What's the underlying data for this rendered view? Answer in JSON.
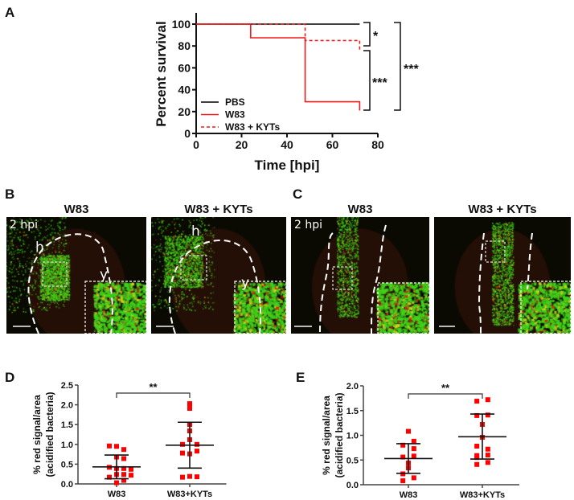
{
  "panel_letters": [
    "A",
    "B",
    "C",
    "D",
    "E"
  ],
  "micrographs": {
    "B": {
      "titles": [
        "W83",
        "W83 + KYTs"
      ],
      "time_label": "2 hpi",
      "region_labels": [
        "h",
        "y"
      ]
    },
    "C": {
      "titles": [
        "W83",
        "W83 + KYTs"
      ],
      "time_label": "2 hpi"
    }
  },
  "colors": {
    "pbs": "#000000",
    "w83": "#ee1c1c",
    "kyts": "#ee1c1c",
    "points": "#ff0000",
    "green": "#3fd21a"
  },
  "chart_data": [
    {
      "id": "A",
      "type": "line",
      "title": "",
      "xlabel": "Time [hpi]",
      "ylabel": "Percent survival",
      "xlim": [
        0,
        80
      ],
      "ylim": [
        0,
        100
      ],
      "xticks": [
        "0",
        "20",
        "40",
        "60",
        "80"
      ],
      "yticks": [
        "0",
        "20",
        "40",
        "60",
        "80",
        "100"
      ],
      "legend_position": "bottom-left",
      "series": [
        {
          "name": "PBS",
          "style": "solid",
          "step": [
            [
              0,
              100
            ],
            [
              72,
              100
            ]
          ]
        },
        {
          "name": "W83",
          "style": "solid",
          "step": [
            [
              0,
              100
            ],
            [
              24,
              87.5
            ],
            [
              48,
              29
            ],
            [
              72,
              21
            ]
          ]
        },
        {
          "name": "W83 + KYTs",
          "style": "dashed",
          "step": [
            [
              0,
              100
            ],
            [
              48,
              85
            ],
            [
              72,
              75
            ]
          ]
        }
      ],
      "annotations": [
        {
          "between": [
            "PBS",
            "W83 + KYTs"
          ],
          "label": "*"
        },
        {
          "between": [
            "W83 + KYTs",
            "W83"
          ],
          "label": "***"
        },
        {
          "between": [
            "PBS",
            "W83"
          ],
          "label": "***"
        }
      ]
    },
    {
      "id": "D",
      "type": "scatter",
      "ylabel": [
        "% red signal/area",
        "(acidified bacteria)"
      ],
      "xlabel": "",
      "categories": [
        "W83",
        "W83+KYTs"
      ],
      "ylim": [
        0,
        2.5
      ],
      "yticks": [
        "0.0",
        "0.5",
        "1.0",
        "1.5",
        "2.0",
        "2.5"
      ],
      "significance": "**",
      "groups": [
        {
          "name": "W83",
          "mean": 0.43,
          "sd_low": 0.13,
          "sd_high": 0.73,
          "points": [
            [
              -0.2,
              0.96
            ],
            [
              0,
              0.95
            ],
            [
              0.2,
              0.87
            ],
            [
              0,
              0.68
            ],
            [
              0.2,
              0.64
            ],
            [
              -0.2,
              0.42
            ],
            [
              0,
              0.39
            ],
            [
              0.2,
              0.39
            ],
            [
              0.4,
              0.37
            ],
            [
              -0.2,
              0.17
            ],
            [
              0,
              0.24
            ],
            [
              0.2,
              0.24
            ],
            [
              0.4,
              0.22
            ],
            [
              0,
              0.03
            ],
            [
              0.2,
              0.09
            ]
          ]
        },
        {
          "name": "W83+KYTs",
          "mean": 0.98,
          "sd_low": 0.4,
          "sd_high": 1.56,
          "points": [
            [
              0,
              2.03
            ],
            [
              0,
              1.91
            ],
            [
              0,
              1.5
            ],
            [
              0,
              1.34
            ],
            [
              0,
              1.12
            ],
            [
              -0.2,
              1.0
            ],
            [
              0.2,
              1.0
            ],
            [
              -0.2,
              0.78
            ],
            [
              0,
              0.76
            ],
            [
              0.2,
              0.83
            ],
            [
              -0.2,
              0.17
            ],
            [
              0,
              0.19
            ],
            [
              0.2,
              0.18
            ]
          ]
        }
      ]
    },
    {
      "id": "E",
      "type": "scatter",
      "ylabel": [
        "% red signal/area",
        "(acidified bacteria)"
      ],
      "xlabel": "",
      "categories": [
        "W83",
        "W83+KYTs"
      ],
      "ylim": [
        0,
        2.0
      ],
      "yticks": [
        "0.0",
        "0.5",
        "1.0",
        "1.5",
        "2.0"
      ],
      "significance": "**",
      "groups": [
        {
          "name": "W83",
          "mean": 0.53,
          "sd_low": 0.23,
          "sd_high": 0.83,
          "points": [
            [
              0,
              1.08
            ],
            [
              0.15,
              0.88
            ],
            [
              -0.15,
              0.8
            ],
            [
              0.15,
              0.73
            ],
            [
              -0.15,
              0.56
            ],
            [
              0.15,
              0.58
            ],
            [
              0,
              0.44
            ],
            [
              0,
              0.34
            ],
            [
              -0.15,
              0.22
            ],
            [
              0.15,
              0.14
            ],
            [
              -0.15,
              0.08
            ]
          ]
        },
        {
          "name": "W83+KYTs",
          "mean": 0.97,
          "sd_low": 0.52,
          "sd_high": 1.43,
          "points": [
            [
              -0.15,
              1.69
            ],
            [
              0.15,
              1.72
            ],
            [
              -0.15,
              1.4
            ],
            [
              0.15,
              1.41
            ],
            [
              0,
              1.22
            ],
            [
              0,
              0.96
            ],
            [
              -0.15,
              0.78
            ],
            [
              0.15,
              0.72
            ],
            [
              -0.15,
              0.59
            ],
            [
              0.15,
              0.6
            ],
            [
              -0.15,
              0.55
            ],
            [
              -0.15,
              0.41
            ],
            [
              0.15,
              0.45
            ]
          ]
        }
      ]
    }
  ]
}
